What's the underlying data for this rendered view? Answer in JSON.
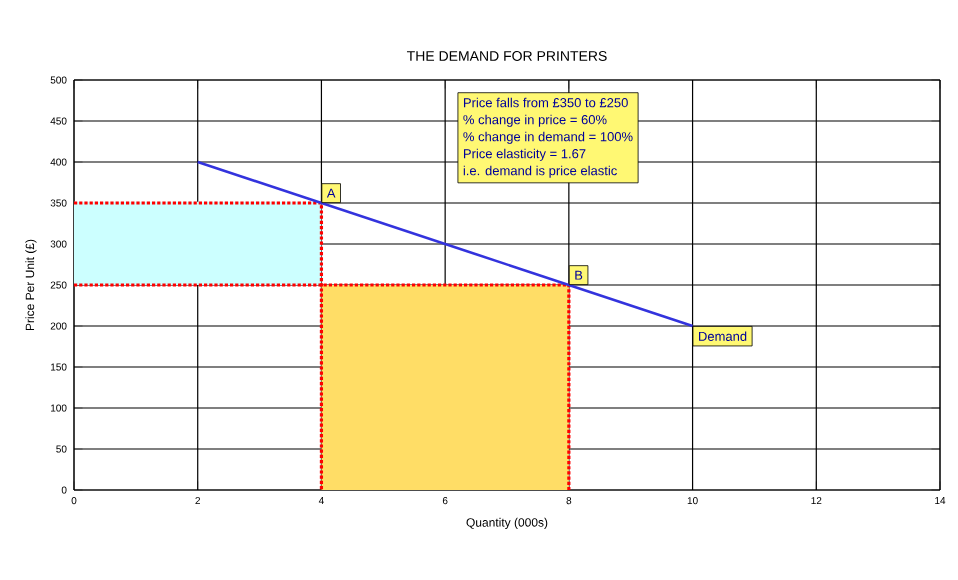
{
  "chart_data": {
    "type": "line",
    "title": "THE DEMAND FOR PRINTERS",
    "xlabel": "Quantity (000s)",
    "ylabel": "Price Per Unit (£)",
    "xlim": [
      0,
      14
    ],
    "xticks": [
      0,
      2,
      4,
      6,
      8,
      10,
      12,
      14
    ],
    "ylim": [
      0,
      500
    ],
    "yticks": [
      0,
      50,
      100,
      150,
      200,
      250,
      300,
      350,
      400,
      450,
      500
    ],
    "grid": true,
    "series": [
      {
        "color": "#ccffff",
        "x": [
          0,
          4
        ],
        "values": [
          350,
          350
        ],
        "lower": [
          250,
          250
        ],
        "upper": [
          350,
          350
        ]
      },
      {
        "type": "area",
        "color": "#ffdd66",
        "x": [
          4,
          8
        ],
        "values": [
          250,
          250
        ]
      },
      {
        "color": "#ff0000",
        "line_style": "dotted",
        "x": [
          0,
          4,
          4
        ],
        "values": [
          350,
          350,
          0
        ]
      },
      {
        "color": "#ff0000",
        "line_style": "dotted",
        "x": [
          0,
          8,
          8
        ],
        "values": [
          250,
          250,
          0
        ]
      },
      {
        "color": "#3333dd",
        "line_style": "solid",
        "x": [
          2,
          10
        ],
        "values": [
          400,
          200
        ]
      }
    ],
    "annotations": [
      {
        "text": "A",
        "x": 4,
        "y": 350
      },
      {
        "text": "B",
        "x": 8,
        "y": 250
      },
      {
        "text": "Demand",
        "x": 10,
        "y": 200
      },
      "Price falls from £350 to £250",
      "% change in price = 60%",
      "% change in demand = 100%",
      "Price elasticity = 1.67",
      "i.e. demand is price elastic"
    ]
  }
}
